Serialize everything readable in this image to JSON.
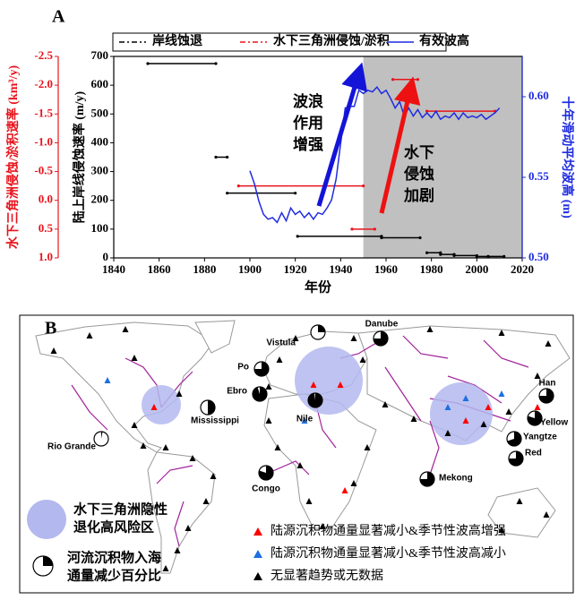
{
  "chart_data": {
    "type": "line",
    "panel_label": "A",
    "x_label": "年份",
    "y_label": "陆上岸线侵蚀速率 (m/y)",
    "y2_label": "十年滑动平均波高 (m)",
    "y3_label": "水下三角洲侵蚀/淤积速率 (km³/y)",
    "xlim": [
      1840,
      2020
    ],
    "xticks": [
      1840,
      1860,
      1880,
      1900,
      1920,
      1940,
      1960,
      1980,
      2000,
      2020
    ],
    "ylim": [
      0,
      700
    ],
    "yticks": [
      0,
      100,
      200,
      300,
      400,
      500,
      600,
      700
    ],
    "y2lim": [
      0.5,
      0.625
    ],
    "y2ticks": [
      {
        "value": 0.5,
        "label": "0.50"
      },
      0.55,
      {
        "value": 0.6,
        "label": "0.60"
      }
    ],
    "y3lim": [
      1.0,
      -2.5
    ],
    "y3ticks": [
      -2.5,
      {
        "value": -2.0,
        "label": "-2.0"
      },
      -1.5,
      {
        "value": -1.0,
        "label": "-1.0"
      },
      -0.5,
      {
        "value": 0.0,
        "label": "0.0"
      },
      0.5,
      {
        "value": 1.0,
        "label": "1.0"
      }
    ],
    "shade_xlim": [
      1950,
      2020
    ],
    "shade_color": "#c0c0c0",
    "annotations": [
      [
        "波浪",
        "作用",
        "增强"
      ],
      [
        "水下",
        "侵蚀",
        "加剧"
      ]
    ],
    "series": [
      {
        "name": "岸线蚀退",
        "color": "#000000",
        "axis": "y",
        "x_start": [
          1855,
          1885,
          1890,
          1921,
          1958,
          1978,
          1984,
          1990,
          2000,
          2005
        ],
        "x_end": [
          1885,
          1890,
          1920,
          1958,
          1975,
          1984,
          1990,
          2000,
          2005,
          2012
        ],
        "values": [
          675,
          350,
          225,
          75,
          70,
          18,
          12,
          8,
          5,
          5
        ]
      },
      {
        "name": "水下三角洲侵蚀/淤积",
        "color": "#e8141c",
        "axis": "y3",
        "x_start": [
          1895,
          1945,
          1963,
          1978
        ],
        "x_end": [
          1950,
          1955,
          1974,
          2008
        ],
        "values": [
          -0.25,
          0.5,
          -2.1,
          -1.55
        ]
      },
      {
        "name": "有效波高",
        "color": "#1f2ce0",
        "axis": "y2",
        "x": [
          1900,
          1902,
          1904,
          1906,
          1908,
          1910,
          1912,
          1914,
          1916,
          1918,
          1920,
          1922,
          1924,
          1926,
          1928,
          1930,
          1932,
          1934,
          1936,
          1938,
          1940,
          1942,
          1944,
          1946,
          1948,
          1950,
          1952,
          1954,
          1956,
          1958,
          1960,
          1962,
          1964,
          1966,
          1968,
          1970,
          1972,
          1974,
          1976,
          1978,
          1980,
          1982,
          1984,
          1986,
          1988,
          1990,
          1992,
          1994,
          1996,
          1998,
          2000,
          2002,
          2004,
          2006,
          2008,
          2010
        ],
        "values": [
          0.554,
          0.546,
          0.535,
          0.527,
          0.524,
          0.525,
          0.522,
          0.528,
          0.523,
          0.531,
          0.527,
          0.529,
          0.525,
          0.528,
          0.524,
          0.528,
          0.527,
          0.531,
          0.536,
          0.549,
          0.571,
          0.593,
          0.594,
          0.594,
          0.604,
          0.602,
          0.604,
          0.603,
          0.606,
          0.602,
          0.604,
          0.599,
          0.593,
          0.597,
          0.588,
          0.593,
          0.588,
          0.592,
          0.587,
          0.59,
          0.587,
          0.591,
          0.586,
          0.588,
          0.587,
          0.59,
          0.586,
          0.59,
          0.587,
          0.588,
          0.587,
          0.589,
          0.586,
          0.588,
          0.59,
          0.593
        ]
      }
    ]
  },
  "map": {
    "panel_label": "B",
    "rivers": [
      {
        "name": "Danube",
        "reduction": 75
      },
      {
        "name": "Vistula",
        "reduction": 25
      },
      {
        "name": "Po",
        "reduction": 75
      },
      {
        "name": "Ebro",
        "reduction": 95
      },
      {
        "name": "Nile",
        "reduction": 98
      },
      {
        "name": "Mississippi",
        "reduction": 50
      },
      {
        "name": "Rio Grande",
        "reduction": 3
      },
      {
        "name": "Congo",
        "reduction": 80
      },
      {
        "name": "Mekong",
        "reduction": 75
      },
      {
        "name": "Han",
        "reduction": 75
      },
      {
        "name": "Yellow",
        "reduction": 80
      },
      {
        "name": "Yangtze",
        "reduction": 70
      },
      {
        "name": "Red",
        "reduction": 75
      }
    ],
    "risk_area_color": "#b3b8ee",
    "risk_area_label": [
      "水下三角洲隐性",
      "退化高风险区"
    ],
    "pie_label": [
      "河流沉积物入海",
      "通量减少百分比"
    ],
    "triangles": [
      {
        "color": "#ff0000",
        "label": "陆源沉积物通量显著减小&季节性波高增强"
      },
      {
        "color": "#1e6fe0",
        "label": "陆源沉积物通量显著减小&季节性波高减小"
      },
      {
        "color": "#000000",
        "label": "无显著趋势或无数据"
      }
    ]
  }
}
